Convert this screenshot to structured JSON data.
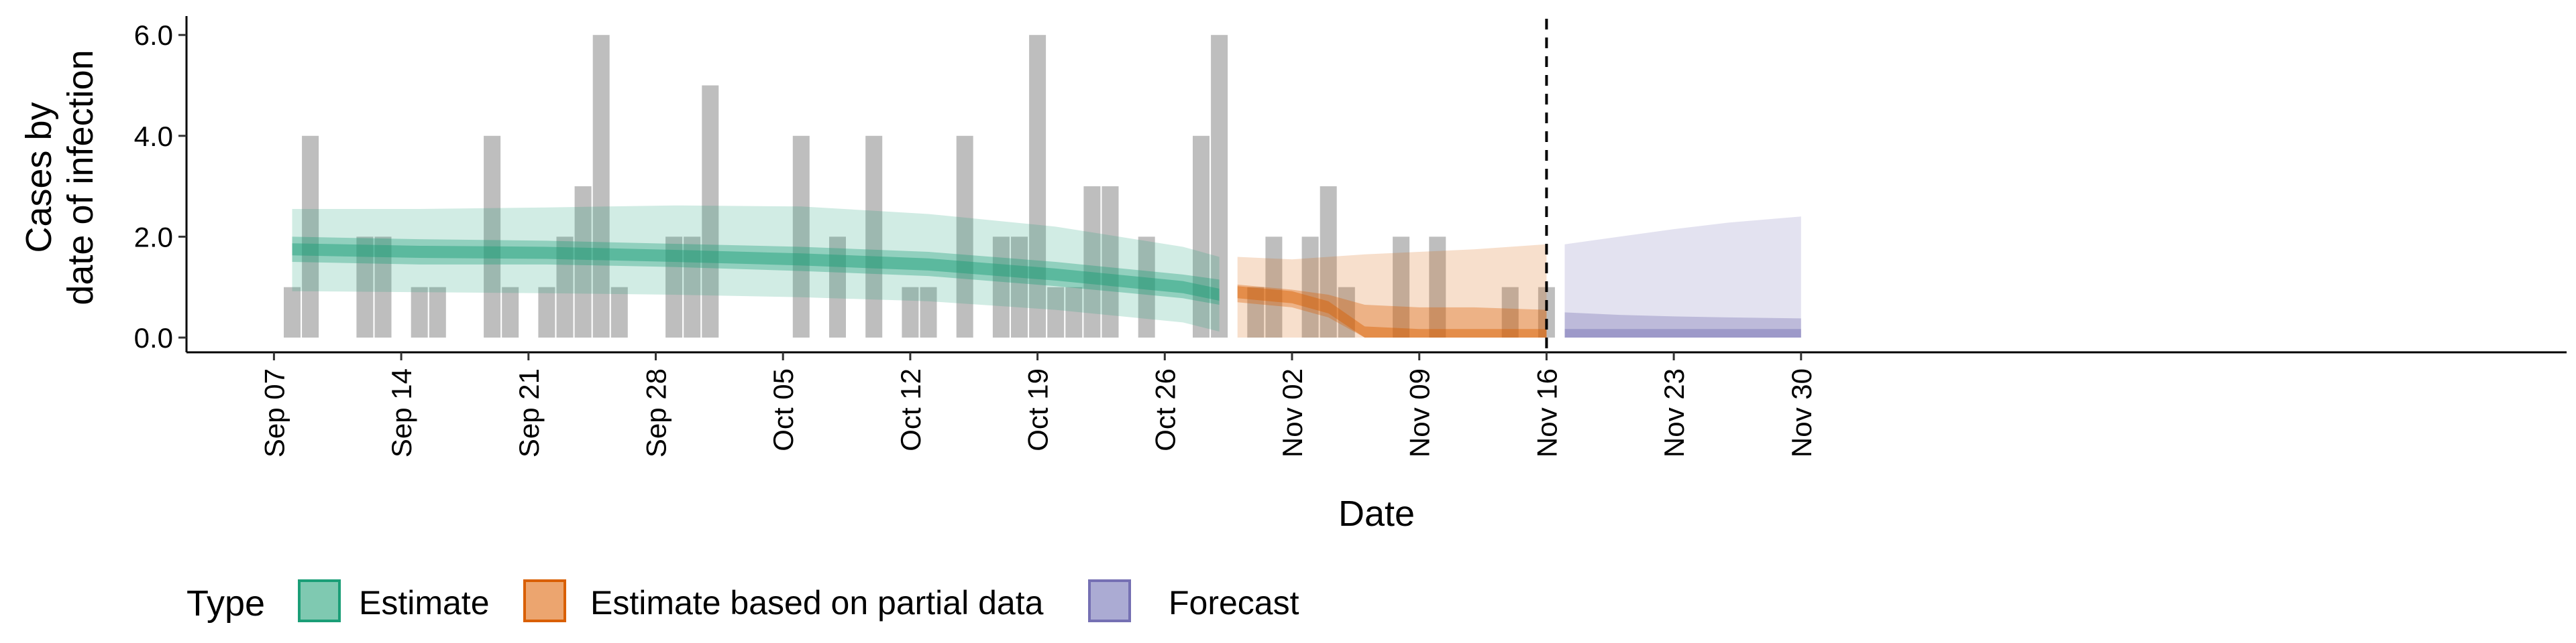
{
  "chart_data": {
    "type": "bar",
    "xlabel": "Date",
    "ylabel": [
      "Cases by",
      "date of infection"
    ],
    "ylim": [
      0,
      6.25
    ],
    "y_ticks": [
      0,
      2,
      4,
      6
    ],
    "y_tick_labels": [
      "0.0",
      "2.0",
      "4.0",
      "6.0"
    ],
    "x_range": [
      "2020-09-03",
      "2020-12-04"
    ],
    "x_ticks": [
      "2020-09-07",
      "2020-09-14",
      "2020-09-21",
      "2020-09-28",
      "2020-10-05",
      "2020-10-12",
      "2020-10-19",
      "2020-10-26",
      "2020-11-02",
      "2020-11-09",
      "2020-11-16",
      "2020-11-23",
      "2020-11-30"
    ],
    "x_tick_labels": [
      "Sep 07",
      "Sep 14",
      "Sep 21",
      "Sep 28",
      "Oct 05",
      "Oct 12",
      "Oct 19",
      "Oct 26",
      "Nov 02",
      "Nov 09",
      "Nov 16",
      "Nov 23",
      "Nov 30"
    ],
    "reference_line": "2020-11-16",
    "grid": false,
    "bars": {
      "color": "#bebebe",
      "dates": [
        "2020-09-08",
        "2020-09-09",
        "2020-09-12",
        "2020-09-13",
        "2020-09-15",
        "2020-09-16",
        "2020-09-19",
        "2020-09-20",
        "2020-09-22",
        "2020-09-23",
        "2020-09-24",
        "2020-09-25",
        "2020-09-26",
        "2020-09-29",
        "2020-09-30",
        "2020-10-01",
        "2020-10-06",
        "2020-10-08",
        "2020-10-10",
        "2020-10-12",
        "2020-10-13",
        "2020-10-15",
        "2020-10-17",
        "2020-10-18",
        "2020-10-19",
        "2020-10-20",
        "2020-10-21",
        "2020-10-22",
        "2020-10-23",
        "2020-10-25",
        "2020-10-28",
        "2020-10-29",
        "2020-10-31",
        "2020-11-01",
        "2020-11-03",
        "2020-11-04",
        "2020-11-05",
        "2020-11-08",
        "2020-11-10",
        "2020-11-14",
        "2020-11-16"
      ],
      "values": [
        1,
        4,
        2,
        2,
        1,
        1,
        4,
        1,
        1,
        2,
        3,
        6,
        1,
        2,
        2,
        5,
        4,
        2,
        4,
        1,
        1,
        4,
        2,
        2,
        6,
        1,
        1,
        3,
        3,
        2,
        4,
        6,
        1,
        2,
        2,
        3,
        1,
        2,
        2,
        1,
        1
      ]
    },
    "series": [
      {
        "name": "Estimate",
        "color": "#1b9e77",
        "x": [
          "2020-09-08",
          "2020-09-15",
          "2020-09-22",
          "2020-09-29",
          "2020-10-06",
          "2020-10-13",
          "2020-10-20",
          "2020-10-27",
          "2020-10-29"
        ],
        "median": [
          1.75,
          1.7,
          1.68,
          1.62,
          1.55,
          1.45,
          1.25,
          1.0,
          0.85
        ],
        "inner_lower": [
          1.5,
          1.45,
          1.45,
          1.4,
          1.32,
          1.22,
          1.02,
          0.78,
          0.65
        ],
        "inner_upper": [
          2.0,
          1.95,
          1.92,
          1.86,
          1.8,
          1.7,
          1.5,
          1.25,
          1.15
        ],
        "outer_lower": [
          0.92,
          0.9,
          0.88,
          0.85,
          0.8,
          0.72,
          0.55,
          0.3,
          0.12
        ],
        "outer_upper": [
          2.55,
          2.55,
          2.58,
          2.62,
          2.6,
          2.45,
          2.2,
          1.8,
          1.6
        ]
      },
      {
        "name": "Estimate based on partial data",
        "color": "#d95f02",
        "x": [
          "2020-10-30",
          "2020-11-02",
          "2020-11-04",
          "2020-11-06",
          "2020-11-09",
          "2020-11-12",
          "2020-11-16"
        ],
        "median": [
          0.9,
          0.8,
          0.6,
          0.1,
          0.05,
          0.05,
          0.05
        ],
        "inner_lower": [
          0.7,
          0.6,
          0.4,
          0.0,
          0.0,
          0.0,
          0.0
        ],
        "inner_upper": [
          1.05,
          0.95,
          0.85,
          0.65,
          0.6,
          0.6,
          0.55
        ],
        "outer_lower": [
          0.0,
          0.0,
          0.0,
          0.0,
          0.0,
          0.0,
          0.0
        ],
        "outer_upper": [
          1.6,
          1.55,
          1.6,
          1.65,
          1.7,
          1.75,
          1.85
        ]
      },
      {
        "name": "Forecast",
        "color": "#7570b3",
        "x": [
          "2020-11-17",
          "2020-11-20",
          "2020-11-23",
          "2020-11-26",
          "2020-11-30"
        ],
        "median": [
          0.05,
          0.05,
          0.05,
          0.05,
          0.05
        ],
        "inner_lower": [
          0.0,
          0.0,
          0.0,
          0.0,
          0.0
        ],
        "inner_upper": [
          0.5,
          0.45,
          0.42,
          0.4,
          0.38
        ],
        "outer_lower": [
          0.0,
          0.0,
          0.0,
          0.0,
          0.0
        ],
        "outer_upper": [
          1.85,
          2.0,
          2.15,
          2.28,
          2.4
        ]
      }
    ],
    "legend": {
      "title": "Type",
      "position": "bottom-left",
      "items": [
        {
          "label": "Estimate",
          "fill": "#7fc9b1",
          "stroke": "#1b9e77"
        },
        {
          "label": "Estimate based on partial data",
          "fill": "#eca56f",
          "stroke": "#d95f02"
        },
        {
          "label": "Forecast",
          "fill": "#ababd3",
          "stroke": "#7570b3"
        }
      ]
    }
  }
}
